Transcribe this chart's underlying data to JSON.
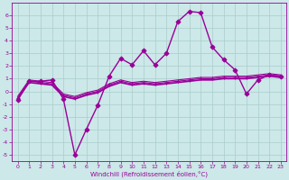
{
  "background_color": "#cce8e8",
  "grid_color": "#aacccc",
  "line_color": "#990099",
  "xlabel": "Windchill (Refroidissement éolien,°C)",
  "ylim": [
    -5.5,
    7.0
  ],
  "xlim": [
    -0.5,
    23.5
  ],
  "yticks": [
    -5,
    -4,
    -3,
    -2,
    -1,
    0,
    1,
    2,
    3,
    4,
    5,
    6
  ],
  "xticks": [
    0,
    1,
    2,
    3,
    4,
    5,
    6,
    7,
    8,
    9,
    10,
    11,
    12,
    13,
    14,
    15,
    16,
    17,
    18,
    19,
    20,
    21,
    22,
    23
  ],
  "series": [
    {
      "x": [
        0,
        1,
        2,
        3,
        4,
        5,
        6,
        7,
        8,
        9,
        10,
        11,
        12,
        13,
        14,
        15,
        16,
        17,
        18,
        19,
        20,
        21,
        22,
        23
      ],
      "y": [
        -0.7,
        0.8,
        0.8,
        0.9,
        -0.6,
        -5.0,
        -3.0,
        -1.1,
        1.2,
        2.6,
        2.1,
        3.2,
        2.1,
        3.0,
        5.5,
        6.3,
        6.2,
        3.5,
        2.5,
        1.7,
        -0.2,
        0.9,
        1.3,
        1.2
      ],
      "marker": "D",
      "markersize": 2.5,
      "linewidth": 1.0
    },
    {
      "x": [
        0,
        1,
        2,
        3,
        4,
        5,
        6,
        7,
        8,
        9,
        10,
        11,
        12,
        13,
        14,
        15,
        16,
        17,
        18,
        19,
        20,
        21,
        22,
        23
      ],
      "y": [
        -0.5,
        0.8,
        0.7,
        0.6,
        -0.3,
        -0.5,
        -0.2,
        0.0,
        0.5,
        0.8,
        0.6,
        0.7,
        0.6,
        0.7,
        0.8,
        0.9,
        1.0,
        1.0,
        1.1,
        1.1,
        1.1,
        1.2,
        1.3,
        1.2
      ],
      "marker": "+",
      "markersize": 3,
      "linewidth": 0.8
    },
    {
      "x": [
        0,
        1,
        2,
        3,
        4,
        5,
        6,
        7,
        8,
        9,
        10,
        11,
        12,
        13,
        14,
        15,
        16,
        17,
        18,
        19,
        20,
        21,
        22,
        23
      ],
      "y": [
        -0.6,
        0.7,
        0.6,
        0.5,
        -0.4,
        -0.6,
        -0.3,
        -0.1,
        0.4,
        0.7,
        0.5,
        0.6,
        0.5,
        0.6,
        0.7,
        0.8,
        0.9,
        0.9,
        1.0,
        1.0,
        1.0,
        1.1,
        1.2,
        1.1
      ],
      "marker": null,
      "markersize": 0,
      "linewidth": 1.2
    },
    {
      "x": [
        0,
        1,
        2,
        3,
        4,
        5,
        6,
        7,
        8,
        9,
        10,
        11,
        12,
        13,
        14,
        15,
        16,
        17,
        18,
        19,
        20,
        21,
        22,
        23
      ],
      "y": [
        -0.4,
        0.9,
        0.8,
        0.7,
        -0.2,
        -0.4,
        -0.1,
        0.1,
        0.6,
        0.9,
        0.7,
        0.8,
        0.7,
        0.8,
        0.9,
        1.0,
        1.1,
        1.1,
        1.2,
        1.2,
        1.2,
        1.3,
        1.4,
        1.3
      ],
      "marker": null,
      "markersize": 0,
      "linewidth": 0.8
    }
  ]
}
